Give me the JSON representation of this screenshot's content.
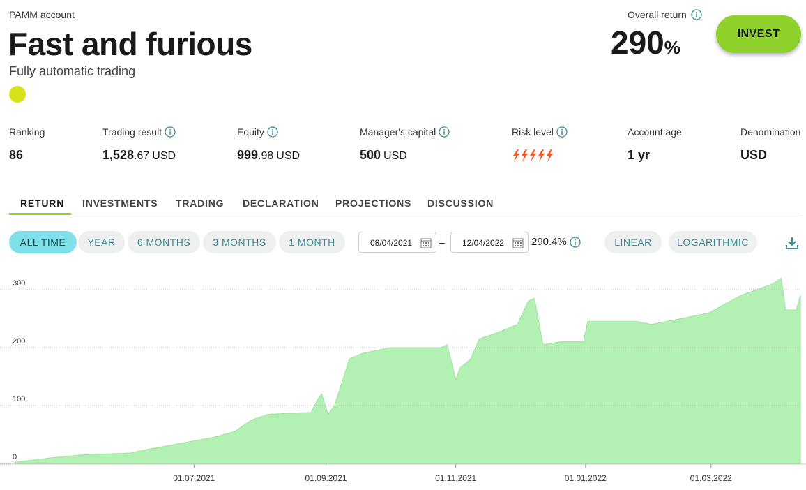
{
  "header": {
    "label": "PAMM account",
    "title": "Fast and furious",
    "subtitle": "Fully automatic trading"
  },
  "overall_return": {
    "label": "Overall return",
    "value": "290",
    "unit": "%"
  },
  "invest_button": "INVEST",
  "stats": [
    {
      "label": "Ranking",
      "value": "86"
    },
    {
      "label": "Trading result",
      "value": "1,528",
      "fraction": ".67",
      "unit": "USD"
    },
    {
      "label": "Equity",
      "value": "999",
      "fraction": ".98",
      "unit": "USD"
    },
    {
      "label": "Manager's capital",
      "value": "500",
      "unit": "USD"
    },
    {
      "label": "Risk level"
    },
    {
      "label": "Account age",
      "value": "1 yr"
    },
    {
      "label": "Denomination",
      "value": "USD"
    }
  ],
  "tabs": [
    "RETURN",
    "INVESTMENTS",
    "TRADING",
    "DECLARATION",
    "PROJECTIONS",
    "DISCUSSION"
  ],
  "periods": [
    "ALL TIME",
    "YEAR",
    "6 MONTHS",
    "3 MONTHS",
    "1 MONTH"
  ],
  "date_from": "08/04/2021",
  "date_separator": "–",
  "date_to": "12/04/2022",
  "range_return": "290.4%",
  "scales": [
    "LINEAR",
    "LOGARITHMIC"
  ],
  "chart_data": {
    "type": "area",
    "color": "#b3f0b3",
    "grid": true,
    "x": [
      "2021-04-08",
      "2021-04-25",
      "2021-05-10",
      "2021-06-01",
      "2021-06-10",
      "2021-06-25",
      "2021-07-10",
      "2021-07-20",
      "2021-07-28",
      "2021-08-05",
      "2021-08-25",
      "2021-08-28",
      "2021-08-30",
      "2021-09-02",
      "2021-09-05",
      "2021-09-12",
      "2021-09-18",
      "2021-10-01",
      "2021-10-25",
      "2021-10-28",
      "2021-11-01",
      "2021-11-03",
      "2021-11-08",
      "2021-11-12",
      "2021-11-20",
      "2021-11-30",
      "2021-12-05",
      "2021-12-08",
      "2021-12-12",
      "2021-12-20",
      "2021-12-31",
      "2022-01-02",
      "2022-01-25",
      "2022-02-01",
      "2022-02-15",
      "2022-02-28",
      "2022-03-05",
      "2022-03-15",
      "2022-03-30",
      "2022-04-03",
      "2022-04-05",
      "2022-04-10",
      "2022-04-12"
    ],
    "values": [
      2,
      10,
      15,
      18,
      25,
      35,
      45,
      55,
      75,
      85,
      88,
      110,
      120,
      85,
      100,
      180,
      190,
      200,
      200,
      205,
      145,
      165,
      180,
      215,
      225,
      240,
      280,
      285,
      205,
      210,
      210,
      245,
      245,
      240,
      250,
      260,
      270,
      290,
      310,
      320,
      265,
      265,
      290
    ],
    "xlim": [
      "2021-04-08",
      "2022-04-12"
    ],
    "xticks": [
      {
        "value": "2021-07-01",
        "label": "01.07.2021"
      },
      {
        "value": "2021-09-01",
        "label": "01.09.2021"
      },
      {
        "value": "2021-11-01",
        "label": "01.11.2021"
      },
      {
        "value": "2022-01-01",
        "label": "01.01.2022"
      },
      {
        "value": "2022-03-01",
        "label": "01.03.2022"
      }
    ],
    "ylim": [
      0,
      330
    ],
    "yticks": [
      0,
      100,
      200,
      300
    ]
  }
}
